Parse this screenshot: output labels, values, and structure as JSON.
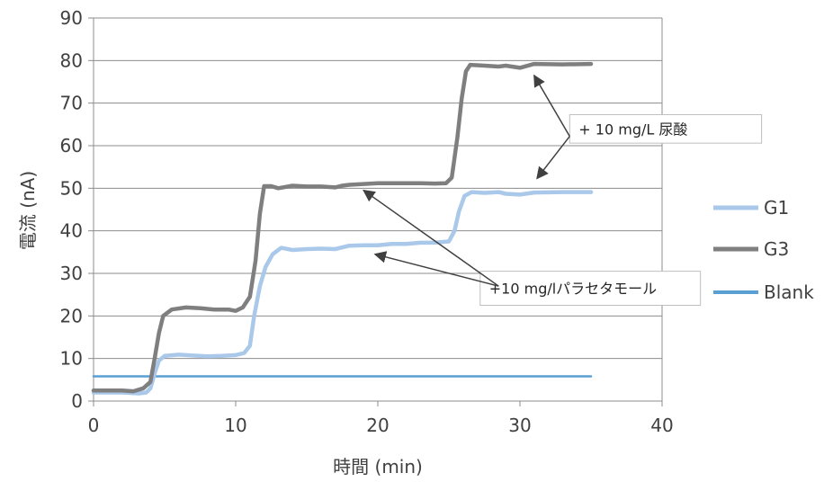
{
  "chart_data": {
    "type": "line",
    "title": "",
    "xlabel": "時間 (min)",
    "ylabel": "電流 (nA)",
    "xlim": [
      0,
      40
    ],
    "ylim": [
      0,
      90
    ],
    "xticks": [
      0,
      10,
      20,
      30,
      40
    ],
    "yticks": [
      0,
      10,
      20,
      30,
      40,
      50,
      60,
      70,
      80,
      90
    ],
    "grid": "horizontal",
    "legend_position": "right",
    "series": [
      {
        "name": "G1",
        "color": "#a9c8ea",
        "points": [
          [
            0,
            2.0
          ],
          [
            2,
            2.0
          ],
          [
            3.2,
            1.8
          ],
          [
            3.7,
            2.0
          ],
          [
            4.0,
            3.0
          ],
          [
            4.3,
            6.5
          ],
          [
            4.6,
            9.5
          ],
          [
            5.0,
            10.6
          ],
          [
            6,
            10.9
          ],
          [
            7,
            10.7
          ],
          [
            8,
            10.5
          ],
          [
            9,
            10.6
          ],
          [
            10,
            10.8
          ],
          [
            10.6,
            11.3
          ],
          [
            11.0,
            13.0
          ],
          [
            11.3,
            20.0
          ],
          [
            11.7,
            27.0
          ],
          [
            12.1,
            31.5
          ],
          [
            12.6,
            34.5
          ],
          [
            13.2,
            36.0
          ],
          [
            14,
            35.5
          ],
          [
            15,
            35.7
          ],
          [
            16,
            35.8
          ],
          [
            17,
            35.7
          ],
          [
            18,
            36.5
          ],
          [
            19,
            36.6
          ],
          [
            20,
            36.6
          ],
          [
            21,
            36.9
          ],
          [
            22,
            36.9
          ],
          [
            23,
            37.2
          ],
          [
            24,
            37.2
          ],
          [
            25,
            37.5
          ],
          [
            25.4,
            40.0
          ],
          [
            25.7,
            44.5
          ],
          [
            26.1,
            48.2
          ],
          [
            26.6,
            49.1
          ],
          [
            27.5,
            48.9
          ],
          [
            28.5,
            49.1
          ],
          [
            29,
            48.7
          ],
          [
            30,
            48.5
          ],
          [
            31,
            49.0
          ],
          [
            33,
            49.1
          ],
          [
            35,
            49.1
          ]
        ]
      },
      {
        "name": "G3",
        "color": "#7f7f80",
        "points": [
          [
            0,
            2.5
          ],
          [
            2,
            2.5
          ],
          [
            2.8,
            2.3
          ],
          [
            3.5,
            3.0
          ],
          [
            4.0,
            4.5
          ],
          [
            4.3,
            10.0
          ],
          [
            4.6,
            16.0
          ],
          [
            4.9,
            20.0
          ],
          [
            5.5,
            21.5
          ],
          [
            6.5,
            22.0
          ],
          [
            7.5,
            21.8
          ],
          [
            8.5,
            21.5
          ],
          [
            9.5,
            21.5
          ],
          [
            10.0,
            21.2
          ],
          [
            10.5,
            22.0
          ],
          [
            11.0,
            24.5
          ],
          [
            11.4,
            33.0
          ],
          [
            11.7,
            44.0
          ],
          [
            12.0,
            50.5
          ],
          [
            12.5,
            50.5
          ],
          [
            13,
            50.0
          ],
          [
            14,
            50.6
          ],
          [
            15,
            50.4
          ],
          [
            16,
            50.4
          ],
          [
            17,
            50.2
          ],
          [
            17.5,
            50.6
          ],
          [
            18,
            50.8
          ],
          [
            19,
            51.0
          ],
          [
            20,
            51.2
          ],
          [
            21,
            51.2
          ],
          [
            22,
            51.2
          ],
          [
            23,
            51.2
          ],
          [
            24,
            51.1
          ],
          [
            24.8,
            51.2
          ],
          [
            25.2,
            52.5
          ],
          [
            25.6,
            62.0
          ],
          [
            25.9,
            71.0
          ],
          [
            26.2,
            77.5
          ],
          [
            26.5,
            79.0
          ],
          [
            27.5,
            78.8
          ],
          [
            28.5,
            78.6
          ],
          [
            29,
            78.8
          ],
          [
            30,
            78.3
          ],
          [
            31,
            79.2
          ],
          [
            33,
            79.1
          ],
          [
            35,
            79.2
          ]
        ]
      },
      {
        "name": "Blank",
        "color": "#5a9fd4",
        "points": [
          [
            0,
            5.8
          ],
          [
            35,
            5.8
          ]
        ]
      }
    ],
    "annotations": [
      {
        "text": "+ 10 mg/L 尿酸",
        "box": {
          "x1": 33.5,
          "x2": 47.0,
          "y1": 60.6,
          "y2": 67.3
        },
        "arrow_from": [
          33.5,
          62.2
        ],
        "arrow_targets": [
          [
            31.0,
            76.5
          ],
          [
            31.2,
            52.3
          ]
        ]
      },
      {
        "text": "+10 mg/lパラセタモール",
        "box": {
          "x1": 27.2,
          "x2": 42.7,
          "y1": 22.5,
          "y2": 30.5
        },
        "arrow_from": [
          28.5,
          27.0
        ],
        "arrow_targets": [
          [
            19.0,
            49.5
          ],
          [
            19.8,
            34.5
          ]
        ]
      }
    ]
  }
}
